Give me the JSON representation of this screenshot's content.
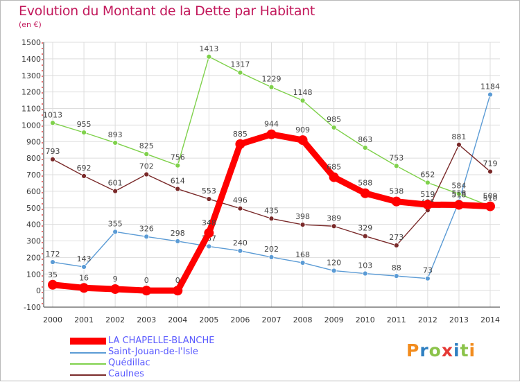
{
  "title": "Evolution du Montant de la Dette par Habitant",
  "unit_label": "(en €)",
  "logo_text": "Proxiti",
  "chart_data": {
    "type": "line",
    "title": "Evolution du Montant de la Dette par Habitant",
    "subtitle": "(en €)",
    "x": [
      2000,
      2001,
      2002,
      2003,
      2004,
      2005,
      2006,
      2007,
      2008,
      2009,
      2010,
      2011,
      2012,
      2013,
      2014
    ],
    "ylim": [
      -100,
      1500
    ],
    "yticks": [
      -100,
      0,
      100,
      200,
      300,
      400,
      500,
      600,
      700,
      800,
      900,
      1000,
      1100,
      1200,
      1300,
      1400,
      1500
    ],
    "grid": true,
    "legend": "bottom-left",
    "series": [
      {
        "name": "LA CHAPELLE-BLANCHE",
        "color": "#ff0000",
        "values": [
          35,
          16,
          9,
          0,
          0,
          348,
          885,
          944,
          909,
          685,
          588,
          538,
          519,
          518,
          509
        ]
      },
      {
        "name": "Saint-Jouan-de-l'Isle",
        "color": "#5b9bd5",
        "values": [
          172,
          143,
          355,
          326,
          298,
          267,
          240,
          202,
          168,
          120,
          103,
          88,
          73,
          538,
          1184
        ]
      },
      {
        "name": "Quédillac",
        "color": "#7fd14b",
        "values": [
          1013,
          955,
          893,
          825,
          756,
          1413,
          1317,
          1229,
          1148,
          985,
          863,
          753,
          652,
          584,
          510
        ]
      },
      {
        "name": "Caulnes",
        "color": "#7a2a2a",
        "values": [
          793,
          692,
          601,
          702,
          614,
          553,
          496,
          435,
          398,
          389,
          329,
          273,
          485,
          881,
          719
        ]
      }
    ]
  },
  "logo_colors": [
    "#f28c1e",
    "#2e7fc1",
    "#8bc34a",
    "#e53935",
    "#2e7fc1",
    "#8bc34a",
    "#f28c1e"
  ]
}
